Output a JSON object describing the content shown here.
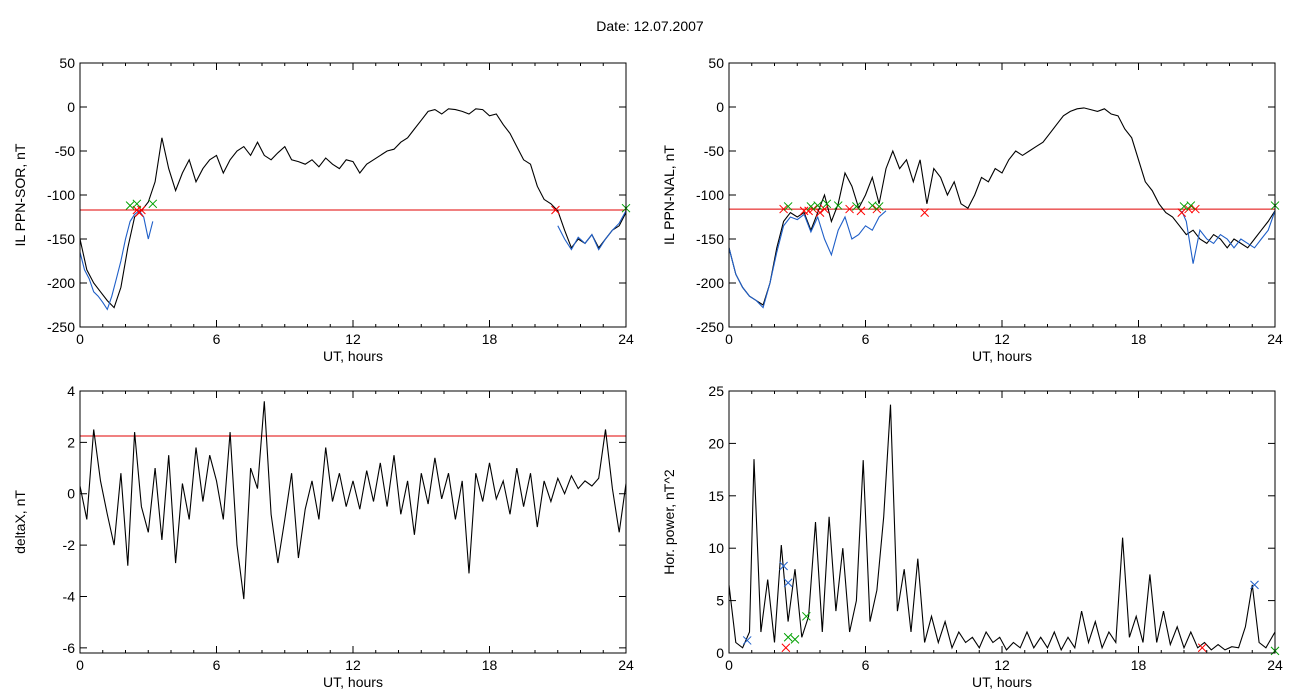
{
  "header": {
    "title": "Date:  12.07.2007"
  },
  "chart_data": [
    {
      "id": "p1",
      "type": "line",
      "ylabel": "IL PPN-SOR, nT",
      "xlabel": "UT, hours",
      "xlim": [
        0,
        24
      ],
      "ylim": [
        -250,
        50
      ],
      "xticks": [
        0,
        6,
        12,
        18,
        24
      ],
      "yticks": [
        -250,
        -200,
        -150,
        -100,
        -50,
        0,
        50
      ],
      "threshold": -117,
      "series": [
        {
          "color": "#000000",
          "x": [
            0,
            0.3,
            0.6,
            0.9,
            1.2,
            1.5,
            1.8,
            2.1,
            2.4,
            2.7,
            3.0,
            3.3,
            3.6,
            3.9,
            4.2,
            4.5,
            4.8,
            5.1,
            5.4,
            5.7,
            6.0,
            6.3,
            6.6,
            6.9,
            7.2,
            7.5,
            7.8,
            8.1,
            8.4,
            8.7,
            9.0,
            9.3,
            9.6,
            9.9,
            10.2,
            10.5,
            10.8,
            11.1,
            11.4,
            11.7,
            12.0,
            12.3,
            12.6,
            12.9,
            13.2,
            13.5,
            13.8,
            14.1,
            14.4,
            14.7,
            15.0,
            15.3,
            15.6,
            15.9,
            16.2,
            16.5,
            16.8,
            17.1,
            17.4,
            17.7,
            18.0,
            18.3,
            18.6,
            18.9,
            19.2,
            19.5,
            19.8,
            20.1,
            20.4,
            20.7,
            21.0,
            21.3,
            21.6,
            21.9,
            22.2,
            22.5,
            22.8,
            23.1,
            23.4,
            23.7,
            24.0
          ],
          "y": [
            -150,
            -185,
            -200,
            -210,
            -220,
            -228,
            -205,
            -160,
            -125,
            -118,
            -108,
            -85,
            -35,
            -70,
            -95,
            -75,
            -60,
            -85,
            -70,
            -60,
            -55,
            -75,
            -60,
            -50,
            -45,
            -55,
            -40,
            -55,
            -60,
            -52,
            -45,
            -60,
            -62,
            -65,
            -60,
            -68,
            -58,
            -65,
            -70,
            -60,
            -62,
            -75,
            -65,
            -60,
            -55,
            -50,
            -48,
            -40,
            -35,
            -25,
            -15,
            -5,
            -3,
            -8,
            -2,
            -3,
            -5,
            -8,
            -2,
            -3,
            -10,
            -8,
            -20,
            -30,
            -45,
            -60,
            -65,
            -90,
            -105,
            -110,
            -118,
            -140,
            -160,
            -150,
            -155,
            -145,
            -160,
            -150,
            -140,
            -135,
            -120
          ]
        },
        {
          "color": "#1f5fc8",
          "x": [
            0,
            0.2,
            0.4,
            0.6,
            0.8,
            1.0,
            1.2,
            1.4,
            1.6,
            1.8,
            2.0,
            2.2,
            2.4,
            2.6,
            2.8,
            3.0,
            3.2
          ],
          "y": [
            -165,
            -185,
            -195,
            -210,
            -215,
            -222,
            -230,
            -215,
            -195,
            -175,
            -150,
            -130,
            -122,
            -118,
            -125,
            -150,
            -130
          ]
        },
        {
          "color": "#1f5fc8",
          "x": [
            21.0,
            21.3,
            21.6,
            21.9,
            22.2,
            22.5,
            22.8,
            23.1,
            23.4,
            23.7,
            24.0
          ],
          "y": [
            -135,
            -150,
            -162,
            -148,
            -155,
            -145,
            -162,
            -150,
            -140,
            -132,
            -118
          ]
        }
      ],
      "markers": [
        {
          "color": "#ff0000",
          "x": [
            2.5,
            2.6,
            2.7,
            20.9
          ],
          "y": [
            -117,
            -120,
            -117,
            -117
          ]
        },
        {
          "color": "#00a000",
          "x": [
            2.2,
            2.5,
            3.2,
            24.0
          ],
          "y": [
            -112,
            -110,
            -110,
            -115
          ]
        }
      ]
    },
    {
      "id": "p2",
      "type": "line",
      "ylabel": "IL PPN-NAL, nT",
      "xlabel": "UT, hours",
      "xlim": [
        0,
        24
      ],
      "ylim": [
        -250,
        50
      ],
      "xticks": [
        0,
        6,
        12,
        18,
        24
      ],
      "yticks": [
        -250,
        -200,
        -150,
        -100,
        -50,
        0,
        50
      ],
      "threshold": -116,
      "series": [
        {
          "color": "#000000",
          "x": [
            0,
            0.3,
            0.6,
            0.9,
            1.2,
            1.5,
            1.8,
            2.1,
            2.4,
            2.7,
            3.0,
            3.3,
            3.6,
            3.9,
            4.2,
            4.5,
            4.8,
            5.1,
            5.4,
            5.7,
            6.0,
            6.3,
            6.6,
            6.9,
            7.2,
            7.5,
            7.8,
            8.1,
            8.4,
            8.7,
            9.0,
            9.3,
            9.6,
            9.9,
            10.2,
            10.5,
            10.8,
            11.1,
            11.4,
            11.7,
            12.0,
            12.3,
            12.6,
            12.9,
            13.2,
            13.5,
            13.8,
            14.1,
            14.4,
            14.7,
            15.0,
            15.3,
            15.6,
            15.9,
            16.2,
            16.5,
            16.8,
            17.1,
            17.4,
            17.7,
            18.0,
            18.3,
            18.6,
            18.9,
            19.2,
            19.5,
            19.8,
            20.1,
            20.4,
            20.7,
            21.0,
            21.3,
            21.6,
            21.9,
            22.2,
            22.5,
            22.8,
            23.1,
            23.4,
            23.7,
            24.0
          ],
          "y": [
            -160,
            -190,
            -205,
            -215,
            -220,
            -225,
            -200,
            -160,
            -130,
            -120,
            -125,
            -120,
            -140,
            -120,
            -100,
            -130,
            -110,
            -75,
            -90,
            -115,
            -100,
            -80,
            -110,
            -70,
            -50,
            -70,
            -60,
            -85,
            -60,
            -110,
            -70,
            -80,
            -100,
            -85,
            -110,
            -115,
            -100,
            -80,
            -85,
            -70,
            -75,
            -60,
            -50,
            -55,
            -50,
            -45,
            -40,
            -30,
            -20,
            -10,
            -5,
            -2,
            -1,
            -3,
            -5,
            -2,
            -8,
            -10,
            -25,
            -35,
            -60,
            -85,
            -95,
            -110,
            -120,
            -125,
            -135,
            -145,
            -140,
            -150,
            -155,
            -145,
            -150,
            -160,
            -150,
            -155,
            -160,
            -150,
            -140,
            -130,
            -118
          ]
        },
        {
          "color": "#1f5fc8",
          "x": [
            0,
            0.3,
            0.6,
            0.9,
            1.2,
            1.5,
            1.8,
            2.1,
            2.4,
            2.7,
            3.0,
            3.3,
            3.6,
            3.9,
            4.2,
            4.5,
            4.8,
            5.1,
            5.4,
            5.7,
            6.0,
            6.3,
            6.6,
            6.9
          ],
          "y": [
            -160,
            -190,
            -205,
            -215,
            -220,
            -228,
            -200,
            -165,
            -135,
            -125,
            -128,
            -122,
            -142,
            -125,
            -150,
            -168,
            -140,
            -125,
            -150,
            -145,
            -135,
            -140,
            -125,
            -118
          ]
        },
        {
          "color": "#1f5fc8",
          "x": [
            19.9,
            20.1,
            20.4,
            20.7,
            21.0,
            21.3,
            21.6,
            21.9,
            22.2,
            22.5,
            22.8,
            23.1,
            23.4,
            23.7,
            24.0
          ],
          "y": [
            -118,
            -130,
            -178,
            -140,
            -150,
            -155,
            -145,
            -150,
            -160,
            -150,
            -155,
            -160,
            -150,
            -140,
            -118
          ]
        }
      ],
      "markers": [
        {
          "color": "#ff0000",
          "x": [
            2.4,
            3.3,
            3.5,
            3.7,
            4.0,
            4.2,
            5.3,
            5.8,
            6.5,
            8.6,
            19.9,
            20.2,
            20.5
          ],
          "y": [
            -116,
            -118,
            -118,
            -116,
            -120,
            -116,
            -116,
            -118,
            -116,
            -120,
            -120,
            -116,
            -116
          ]
        },
        {
          "color": "#00a000",
          "x": [
            2.6,
            3.6,
            3.9,
            4.3,
            4.8,
            5.6,
            6.3,
            6.6,
            20.0,
            20.3,
            24.0
          ],
          "y": [
            -113,
            -113,
            -112,
            -110,
            -112,
            -113,
            -112,
            -113,
            -113,
            -112,
            -112
          ]
        }
      ]
    },
    {
      "id": "p3",
      "type": "line",
      "ylabel": "deltaX, nT",
      "xlabel": "UT, hours",
      "xlim": [
        0,
        24
      ],
      "ylim": [
        -6.2,
        4
      ],
      "xticks": [
        0,
        6,
        12,
        18,
        24
      ],
      "yticks": [
        -6,
        -4,
        -2,
        0,
        2,
        4
      ],
      "threshold": 2.25,
      "series": [
        {
          "color": "#000000",
          "x": [
            0,
            0.3,
            0.6,
            0.9,
            1.2,
            1.5,
            1.8,
            2.1,
            2.4,
            2.7,
            3.0,
            3.3,
            3.6,
            3.9,
            4.2,
            4.5,
            4.8,
            5.1,
            5.4,
            5.7,
            6.0,
            6.3,
            6.6,
            6.9,
            7.2,
            7.5,
            7.8,
            8.1,
            8.4,
            8.7,
            9.0,
            9.3,
            9.6,
            9.9,
            10.2,
            10.5,
            10.8,
            11.1,
            11.4,
            11.7,
            12.0,
            12.3,
            12.6,
            12.9,
            13.2,
            13.5,
            13.8,
            14.1,
            14.4,
            14.7,
            15.0,
            15.3,
            15.6,
            15.9,
            16.2,
            16.5,
            16.8,
            17.1,
            17.4,
            17.7,
            18.0,
            18.3,
            18.6,
            18.9,
            19.2,
            19.5,
            19.8,
            20.1,
            20.4,
            20.7,
            21.0,
            21.3,
            21.6,
            21.9,
            22.2,
            22.5,
            22.8,
            23.1,
            23.4,
            23.7,
            24.0
          ],
          "y": [
            0.3,
            -1.0,
            2.5,
            0.5,
            -0.8,
            -2.0,
            0.8,
            -2.8,
            2.4,
            -0.5,
            -1.5,
            1.0,
            -1.8,
            1.5,
            -2.7,
            0.4,
            -1.0,
            1.8,
            -0.3,
            1.5,
            0.5,
            -1.0,
            2.4,
            -2.0,
            -4.1,
            1.0,
            0.2,
            3.6,
            -0.8,
            -2.7,
            -1.0,
            0.8,
            -2.5,
            -0.6,
            0.5,
            -1.0,
            1.8,
            -0.3,
            0.8,
            -0.5,
            0.5,
            -0.6,
            0.9,
            -0.3,
            1.2,
            -0.5,
            1.5,
            -0.8,
            0.5,
            -1.6,
            0.8,
            -0.4,
            1.4,
            -0.2,
            0.8,
            -1.0,
            0.5,
            -3.1,
            0.8,
            -0.3,
            1.2,
            -0.2,
            0.5,
            -0.8,
            1.0,
            -0.5,
            0.8,
            -1.3,
            0.5,
            -0.3,
            0.6,
            0.0,
            0.7,
            0.2,
            0.5,
            0.3,
            0.6,
            2.5,
            0.2,
            -1.5,
            0.4
          ]
        }
      ],
      "markers": []
    },
    {
      "id": "p4",
      "type": "line",
      "ylabel": "Hor. power, nT^2",
      "xlabel": "UT, hours",
      "xlim": [
        0,
        24
      ],
      "ylim": [
        0,
        25
      ],
      "xticks": [
        0,
        6,
        12,
        18,
        24
      ],
      "yticks": [
        0,
        5,
        10,
        15,
        20,
        25
      ],
      "threshold": 25,
      "series": [
        {
          "color": "#000000",
          "x": [
            0,
            0.3,
            0.6,
            0.9,
            1.1,
            1.4,
            1.7,
            2.0,
            2.3,
            2.6,
            2.9,
            3.2,
            3.5,
            3.8,
            4.1,
            4.4,
            4.7,
            5.0,
            5.3,
            5.6,
            5.9,
            6.2,
            6.5,
            6.8,
            7.1,
            7.4,
            7.7,
            8.0,
            8.3,
            8.6,
            8.9,
            9.2,
            9.5,
            9.8,
            10.1,
            10.4,
            10.7,
            11.0,
            11.3,
            11.6,
            11.9,
            12.2,
            12.5,
            12.8,
            13.1,
            13.4,
            13.7,
            14.0,
            14.3,
            14.6,
            14.9,
            15.2,
            15.5,
            15.8,
            16.1,
            16.4,
            16.7,
            17.0,
            17.3,
            17.6,
            17.9,
            18.2,
            18.5,
            18.8,
            19.1,
            19.4,
            19.7,
            20.0,
            20.3,
            20.6,
            20.9,
            21.2,
            21.5,
            21.8,
            22.1,
            22.4,
            22.7,
            23.0,
            23.3,
            23.6,
            24.0
          ],
          "y": [
            6.5,
            1.0,
            0.5,
            2.0,
            18.5,
            2.0,
            7.0,
            1.0,
            10.3,
            3.0,
            8.0,
            1.5,
            3.5,
            12.5,
            2.0,
            13.0,
            4.0,
            10.0,
            2.0,
            5.0,
            18.4,
            3.0,
            6.0,
            13.0,
            23.7,
            4.0,
            8.0,
            2.0,
            9.0,
            1.0,
            3.5,
            1.0,
            3.0,
            0.5,
            2.0,
            1.0,
            1.5,
            0.5,
            2.0,
            1.0,
            1.5,
            0.3,
            1.0,
            0.5,
            2.0,
            0.5,
            1.5,
            0.5,
            2.0,
            0.3,
            1.5,
            0.5,
            4.0,
            1.0,
            3.0,
            0.5,
            2.0,
            1.0,
            11.0,
            1.5,
            3.5,
            1.0,
            7.5,
            1.0,
            4.0,
            0.8,
            2.5,
            0.5,
            2.0,
            0.5,
            1.0,
            0.3,
            0.8,
            0.3,
            0.6,
            0.5,
            2.5,
            6.5,
            1.0,
            0.5,
            2.0
          ]
        }
      ],
      "markers": [
        {
          "color": "#ff0000",
          "x": [
            2.5,
            20.8
          ],
          "y": [
            0.5,
            0.5
          ]
        },
        {
          "color": "#00a000",
          "x": [
            2.6,
            2.9,
            3.4,
            24.0
          ],
          "y": [
            1.5,
            1.3,
            3.5,
            0.2
          ]
        },
        {
          "color": "#1f5fc8",
          "x": [
            0.8,
            2.4,
            2.6,
            23.1
          ],
          "y": [
            1.2,
            8.3,
            6.7,
            6.5
          ]
        }
      ]
    }
  ]
}
